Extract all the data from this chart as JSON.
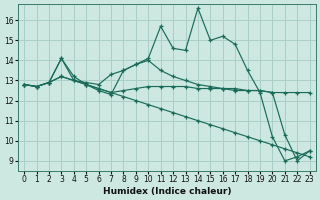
{
  "xlabel": "Humidex (Indice chaleur)",
  "bg_color": "#cce8e0",
  "line_color": "#1a6b5a",
  "grid_color": "#aacfc7",
  "xlim": [
    -0.5,
    23.5
  ],
  "ylim": [
    8.5,
    16.8
  ],
  "yticks": [
    9,
    10,
    11,
    12,
    13,
    14,
    15,
    16
  ],
  "xticks": [
    0,
    1,
    2,
    3,
    4,
    5,
    6,
    7,
    8,
    9,
    10,
    11,
    12,
    13,
    14,
    15,
    16,
    17,
    18,
    19,
    20,
    21,
    22,
    23
  ],
  "series": [
    [
      12.8,
      12.7,
      12.9,
      14.1,
      13.2,
      12.8,
      12.5,
      12.3,
      13.5,
      13.8,
      14.1,
      15.7,
      14.6,
      14.5,
      16.6,
      15.0,
      15.2,
      14.8,
      13.5,
      12.4,
      10.2,
      9.0,
      9.2,
      9.5
    ],
    [
      12.8,
      12.7,
      12.9,
      14.1,
      13.0,
      12.9,
      12.8,
      13.3,
      13.5,
      13.8,
      14.0,
      13.5,
      13.2,
      13.0,
      12.8,
      12.7,
      12.6,
      12.6,
      12.5,
      12.5,
      12.4,
      10.3,
      9.0,
      9.5
    ],
    [
      12.8,
      12.7,
      12.9,
      13.2,
      13.0,
      12.8,
      12.6,
      12.4,
      12.2,
      12.0,
      11.8,
      11.6,
      11.4,
      11.2,
      11.0,
      10.8,
      10.6,
      10.4,
      10.2,
      10.0,
      9.8,
      9.6,
      9.4,
      9.2
    ],
    [
      12.8,
      12.7,
      12.9,
      13.2,
      13.0,
      12.8,
      12.6,
      12.4,
      12.5,
      12.6,
      12.7,
      12.7,
      12.7,
      12.7,
      12.6,
      12.6,
      12.6,
      12.5,
      12.5,
      12.5,
      12.4,
      12.4,
      12.4,
      12.4
    ]
  ]
}
